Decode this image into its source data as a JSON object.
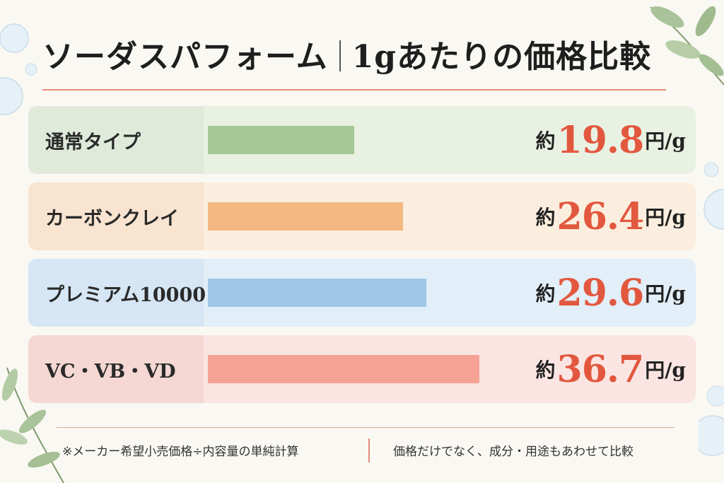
{
  "title": {
    "main": "ソーダスパフォーム",
    "sub": "1gあたりの価格比較"
  },
  "chart_data": {
    "type": "bar",
    "orientation": "horizontal",
    "title": "ソーダスパフォーム｜1gあたりの価格比較",
    "categories": [
      "通常タイプ",
      "カーボンクレイ",
      "プレミアム10000",
      "VC・VB・VD"
    ],
    "values": [
      19.8,
      26.4,
      29.6,
      36.7
    ],
    "value_prefix": "約",
    "value_unit": "円/g",
    "xlim": [
      0,
      44
    ],
    "grid": false,
    "legend": "none",
    "colors": {
      "bars": [
        "#a5c996",
        "#f4b883",
        "#9ec8e6",
        "#f5a195"
      ],
      "rows": [
        "#e9f1e3",
        "#fbeede",
        "#e2eef8",
        "#fae5e2"
      ],
      "labelcells": [
        "#dfeadb",
        "#f8e4d0",
        "#d6e6f4",
        "#f5d8d3"
      ],
      "value_text": "#e2583e"
    }
  },
  "footer": {
    "note_left": "※メーカー希望小売価格÷内容量の単純計算",
    "note_right": "価格だけでなく、成分・用途もあわせて比較"
  }
}
